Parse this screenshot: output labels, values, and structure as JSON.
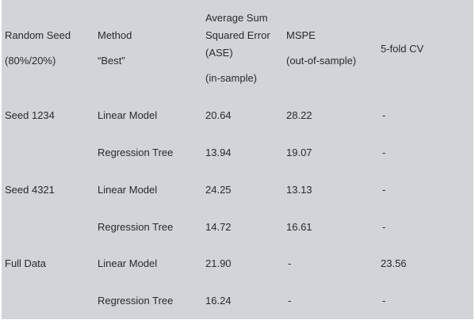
{
  "table": {
    "header": [
      [
        "Random Seed",
        "(80%/20%)"
      ],
      [
        "Method",
        "“Best”"
      ],
      [
        "Average Sum",
        "Squared Error",
        "(ASE)",
        "(in-sample)"
      ],
      [
        "MSPE",
        "(out-of-sample)"
      ],
      [
        "5-fold CV"
      ]
    ],
    "rows": [
      [
        "Seed 1234",
        "Linear Model",
        "20.64",
        "28.22",
        "-"
      ],
      [
        null,
        "Regression Tree",
        "13.94",
        "19.07",
        "-"
      ],
      [
        "Seed 4321",
        "Linear Model",
        "24.25",
        "13.13",
        "-"
      ],
      [
        null,
        "Regression Tree",
        "14.72",
        "16.61",
        "-"
      ],
      [
        "Full Data",
        "Linear Model",
        "21.90",
        "-",
        "23.56"
      ],
      [
        null,
        "Regression Tree",
        "16.24",
        "-",
        "-"
      ]
    ]
  }
}
